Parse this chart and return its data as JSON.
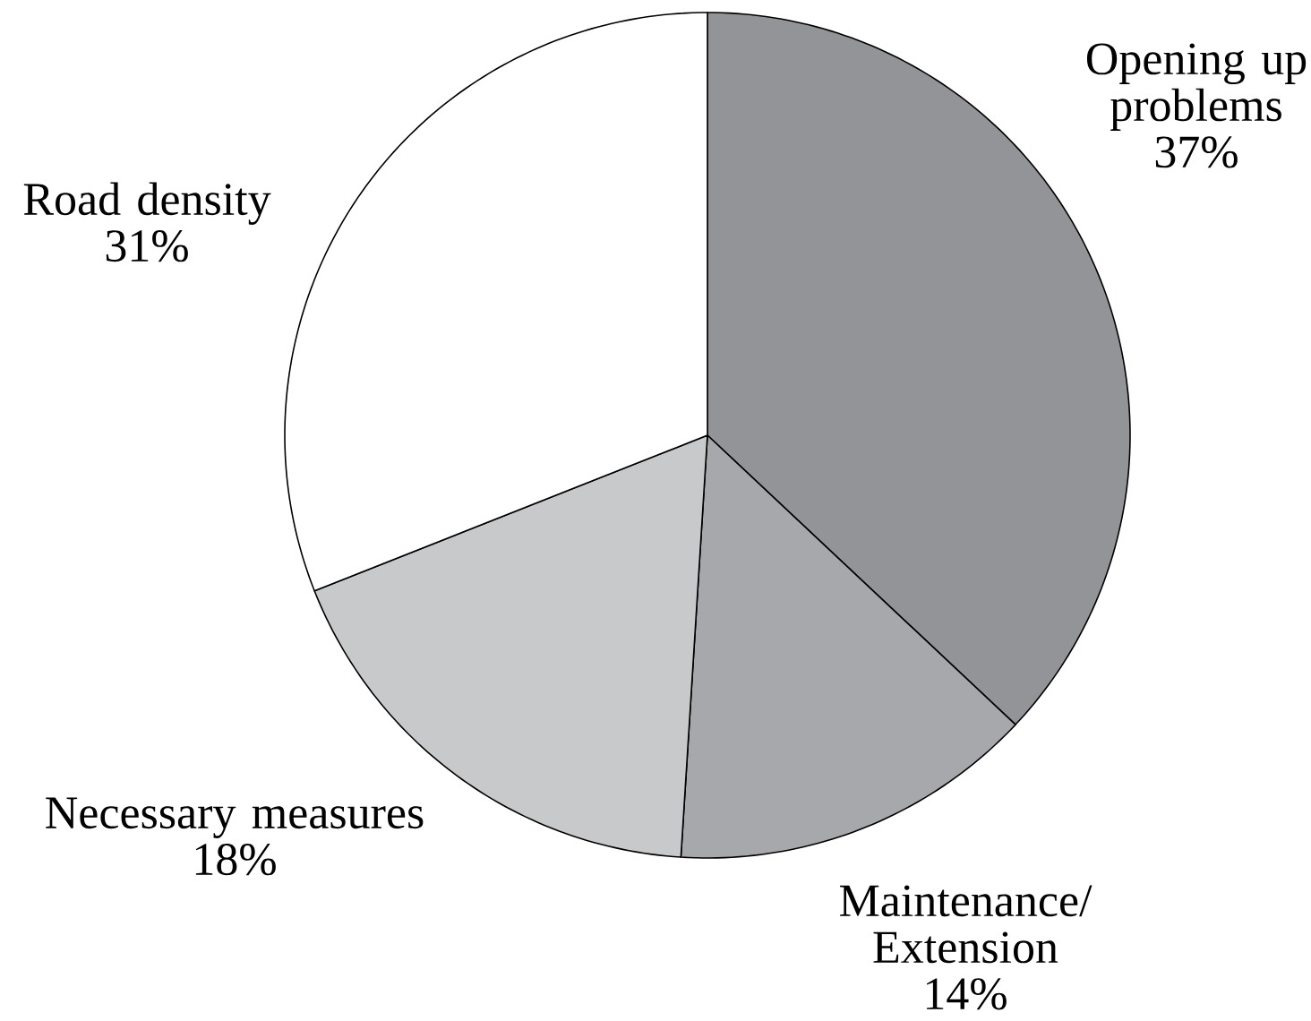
{
  "chart_data": {
    "type": "pie",
    "categories": [
      "Opening up problems",
      "Maintenance/ Extension",
      "Necessary measures",
      "Road density"
    ],
    "values": [
      37,
      14,
      18,
      31
    ],
    "value_labels": [
      "37%",
      "14%",
      "18%",
      "31%"
    ],
    "colors": [
      "#939497",
      "#a7a8ab",
      "#c8c9cb",
      "#ffffff"
    ]
  }
}
